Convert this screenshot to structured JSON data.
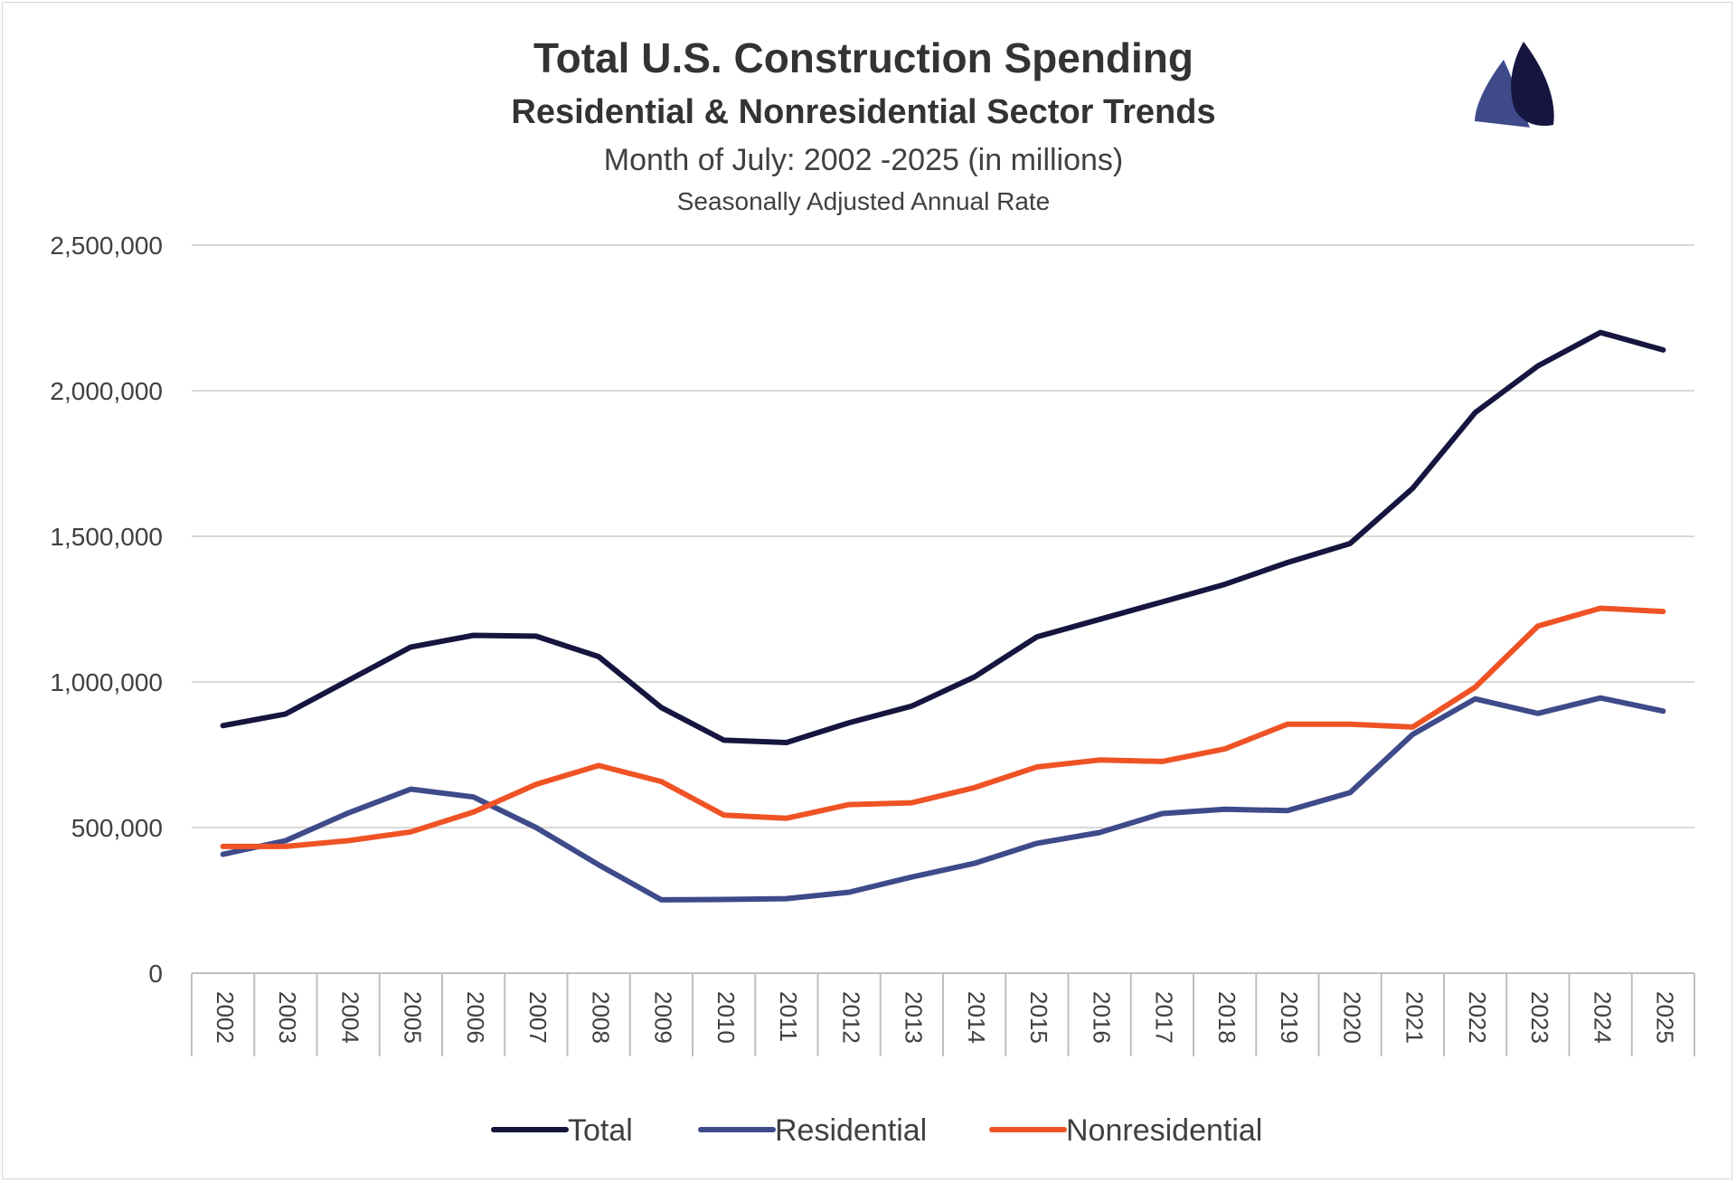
{
  "chart_data": {
    "type": "line",
    "title": "Total U.S. Construction Spending",
    "subtitle": "Residential & Nonresidential Sector Trends",
    "subtitle2": "Month of July: 2002 -2025 (in millions)",
    "subtitle3": "Seasonally Adjusted Annual Rate",
    "x": [
      "2002",
      "2003",
      "2004",
      "2005",
      "2006",
      "2007",
      "2008",
      "2009",
      "2010",
      "2011",
      "2012",
      "2013",
      "2014",
      "2015",
      "2016",
      "2017",
      "2018",
      "2019",
      "2020",
      "2021",
      "2022",
      "2023",
      "2024",
      "2025"
    ],
    "yticks": [
      "0",
      "500,000",
      "1,000,000",
      "1,500,000",
      "2,000,000",
      "2,500,000"
    ],
    "ylim": [
      0,
      2500000
    ],
    "grid": true,
    "legend_position": "bottom",
    "series": [
      {
        "name": "Total",
        "color": "#15153f",
        "values": [
          850000,
          890000,
          1005000,
          1120000,
          1160000,
          1157000,
          1087000,
          912000,
          800000,
          792000,
          860000,
          917000,
          1017000,
          1155000,
          1215000,
          1275000,
          1335000,
          1410000,
          1475000,
          1665000,
          1925000,
          2085000,
          2200000,
          2140000
        ]
      },
      {
        "name": "Residential",
        "color": "#3f4a8a",
        "values": [
          408000,
          455000,
          550000,
          632000,
          605000,
          500000,
          372000,
          252000,
          253000,
          256000,
          278000,
          330000,
          377000,
          446000,
          483000,
          548000,
          563000,
          558000,
          620000,
          820000,
          942000,
          892000,
          945000,
          900000
        ]
      },
      {
        "name": "Nonresidential",
        "color": "#ef5325",
        "values": [
          435000,
          435000,
          455000,
          485000,
          553000,
          648000,
          713000,
          658000,
          543000,
          532000,
          579000,
          585000,
          637000,
          708000,
          732000,
          727000,
          770000,
          855000,
          855000,
          845000,
          982000,
          1192000,
          1253000,
          1242000
        ]
      }
    ]
  },
  "logo": {
    "name": "sailboat-logo",
    "colors": [
      "#3f4a8a",
      "#15153f"
    ]
  }
}
